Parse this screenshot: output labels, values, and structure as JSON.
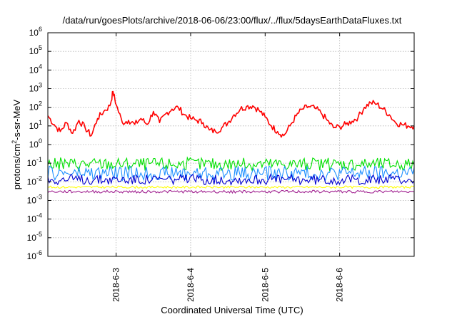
{
  "chart_data": {
    "type": "line",
    "title": "/data/run/goesPlots/archive/2018-06-06/23:00/flux/../flux/5daysEarthDataFluxes.txt",
    "xlabel": "Coordinated Universal Time (UTC)",
    "ylabel_parts": {
      "base": "protons/cm",
      "sup": "2",
      "rest": "-s-sr-MeV"
    },
    "y_scale": "log",
    "ylim": [
      1e-06,
      1000000.0
    ],
    "y_ticks": [
      {
        "exp": -6,
        "base": "10",
        "sup": "-6"
      },
      {
        "exp": -5,
        "base": "10",
        "sup": "-5"
      },
      {
        "exp": -4,
        "base": "10",
        "sup": "-4"
      },
      {
        "exp": -3,
        "base": "10",
        "sup": "-3"
      },
      {
        "exp": -2,
        "base": "10",
        "sup": "-2"
      },
      {
        "exp": -1,
        "base": "10",
        "sup": "-1"
      },
      {
        "exp": 0,
        "base": "10",
        "sup": "0"
      },
      {
        "exp": 1,
        "base": "10",
        "sup": "1"
      },
      {
        "exp": 2,
        "base": "10",
        "sup": "2"
      },
      {
        "exp": 3,
        "base": "10",
        "sup": "3"
      },
      {
        "exp": 4,
        "base": "10",
        "sup": "4"
      },
      {
        "exp": 5,
        "base": "10",
        "sup": "5"
      },
      {
        "exp": 6,
        "base": "10",
        "sup": "6"
      }
    ],
    "xlim": [
      "2018-06-02T02:00",
      "2018-06-07T00:00"
    ],
    "x_ticks": [
      "2018-6-3",
      "2018-6-4",
      "2018-6-5",
      "2018-6-6"
    ],
    "grid": true,
    "legend": "none",
    "series": [
      {
        "color": "#ff0000",
        "x": [
          "2018-06-02T02:00",
          "2018-06-02T04:00",
          "2018-06-02T06:00",
          "2018-06-02T08:00",
          "2018-06-02T10:00",
          "2018-06-02T12:00",
          "2018-06-02T14:00",
          "2018-06-02T16:00",
          "2018-06-02T18:00",
          "2018-06-02T20:00",
          "2018-06-02T22:00",
          "2018-06-02T23:00",
          "2018-06-03T00:00",
          "2018-06-03T02:00",
          "2018-06-03T04:00",
          "2018-06-03T06:00",
          "2018-06-03T08:00",
          "2018-06-03T10:00",
          "2018-06-03T12:00",
          "2018-06-03T14:00",
          "2018-06-03T16:00",
          "2018-06-03T18:00",
          "2018-06-03T20:00",
          "2018-06-03T22:00",
          "2018-06-04T00:00",
          "2018-06-04T02:00",
          "2018-06-04T04:00",
          "2018-06-04T06:00",
          "2018-06-04T08:00",
          "2018-06-04T10:00",
          "2018-06-04T12:00",
          "2018-06-04T14:00",
          "2018-06-04T16:00",
          "2018-06-04T18:00",
          "2018-06-04T20:00",
          "2018-06-04T22:00",
          "2018-06-05T00:00",
          "2018-06-05T02:00",
          "2018-06-05T04:00",
          "2018-06-05T06:00",
          "2018-06-05T08:00",
          "2018-06-05T10:00",
          "2018-06-05T12:00",
          "2018-06-05T14:00",
          "2018-06-05T16:00",
          "2018-06-05T18:00",
          "2018-06-05T20:00",
          "2018-06-05T22:00",
          "2018-06-06T00:00",
          "2018-06-06T02:00",
          "2018-06-06T04:00",
          "2018-06-06T06:00",
          "2018-06-06T08:00",
          "2018-06-06T10:00",
          "2018-06-06T12:00",
          "2018-06-06T14:00",
          "2018-06-06T16:00",
          "2018-06-06T18:00",
          "2018-06-06T20:00",
          "2018-06-06T22:00",
          "2018-06-07T00:00"
        ],
        "values": [
          35,
          12,
          5,
          15,
          4,
          20,
          8,
          3,
          25,
          60,
          120,
          700,
          140,
          15,
          20,
          12,
          25,
          12,
          60,
          15,
          45,
          80,
          100,
          40,
          25,
          20,
          15,
          6,
          5,
          8,
          15,
          40,
          80,
          110,
          120,
          70,
          30,
          10,
          5,
          3,
          10,
          35,
          80,
          110,
          90,
          50,
          20,
          8,
          9,
          12,
          18,
          30,
          100,
          180,
          150,
          80,
          40,
          15,
          12,
          10,
          10
        ]
      },
      {
        "color": "#00e000",
        "band": [
          0.04,
          0.2
        ]
      },
      {
        "color": "#1e90ff",
        "band": [
          0.012,
          0.07
        ]
      },
      {
        "color": "#0000d0",
        "band": [
          0.007,
          0.025
        ]
      },
      {
        "color": "#ffff00",
        "band": [
          0.0045,
          0.006
        ]
      },
      {
        "color": "#a02090",
        "band": [
          0.0025,
          0.0035
        ]
      }
    ]
  }
}
